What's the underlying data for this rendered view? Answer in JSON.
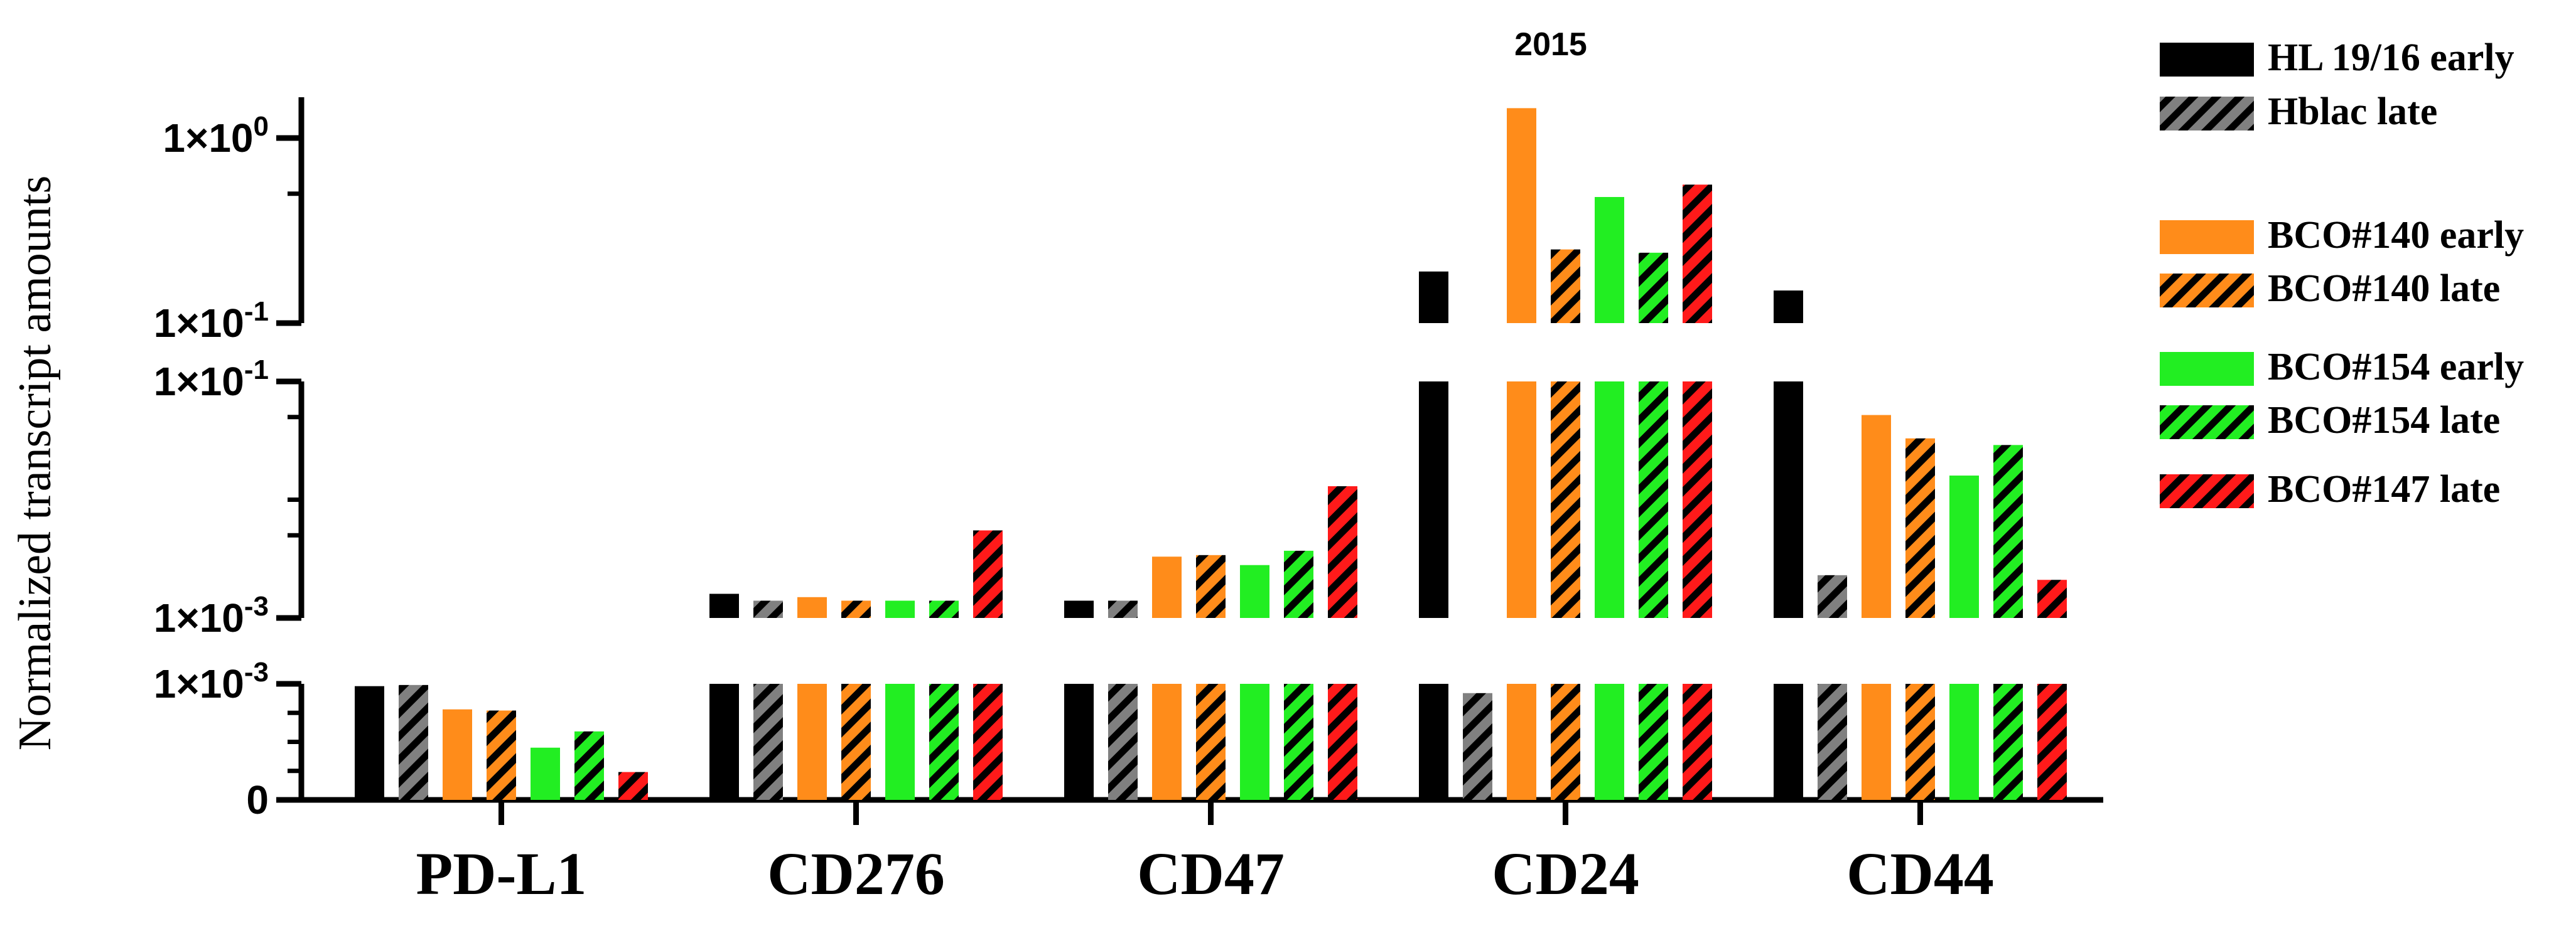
{
  "chart_data": {
    "type": "bar",
    "title": "2015",
    "ylabel": "Normalized transcript amounts",
    "xlabel": "",
    "y_scale": "segmented",
    "y_segments": [
      {
        "name": "linear",
        "range": [
          0,
          0.001
        ],
        "tick_labels": [
          "0",
          "1×10⁻³"
        ]
      },
      {
        "name": "log-low",
        "range": [
          0.001,
          0.1
        ],
        "tick_labels": [
          "1×10⁻³",
          "1×10⁻¹"
        ]
      },
      {
        "name": "log-high",
        "range": [
          0.1,
          1.5
        ],
        "tick_labels": [
          "1×10⁻¹",
          "1×10⁰"
        ]
      }
    ],
    "categories": [
      "PD-L1",
      "CD276",
      "CD47",
      "CD24",
      "CD44"
    ],
    "series": [
      {
        "name": "HL 19/16 early",
        "color": "#000000",
        "hatched": false,
        "values": [
          0.00098,
          0.0016,
          0.0014,
          0.19,
          0.15
        ]
      },
      {
        "name": "Hblac late",
        "color": "#808080",
        "hatched": true,
        "values": [
          0.00099,
          0.0014,
          0.0014,
          0.00092,
          0.0023
        ]
      },
      {
        "name": "BCO#140 early",
        "color": "#ff8c1a",
        "hatched": false,
        "values": [
          0.00078,
          0.0015,
          0.0033,
          1.45,
          0.052
        ]
      },
      {
        "name": "BCO#140 late",
        "color": "#ff8c1a",
        "hatched": true,
        "values": [
          0.00077,
          0.0014,
          0.0034,
          0.25,
          0.033
        ]
      },
      {
        "name": "BCO#154 early",
        "color": "#22ee22",
        "hatched": false,
        "values": [
          0.00045,
          0.0014,
          0.0028,
          0.48,
          0.016
        ]
      },
      {
        "name": "BCO#154 late",
        "color": "#22ee22",
        "hatched": true,
        "values": [
          0.00059,
          0.0014,
          0.0037,
          0.24,
          0.029
        ]
      },
      {
        "name": "BCO#147 late",
        "color": "#ff1a1a",
        "hatched": true,
        "values": [
          0.00024,
          0.0055,
          0.013,
          0.56,
          0.0021
        ]
      }
    ]
  }
}
